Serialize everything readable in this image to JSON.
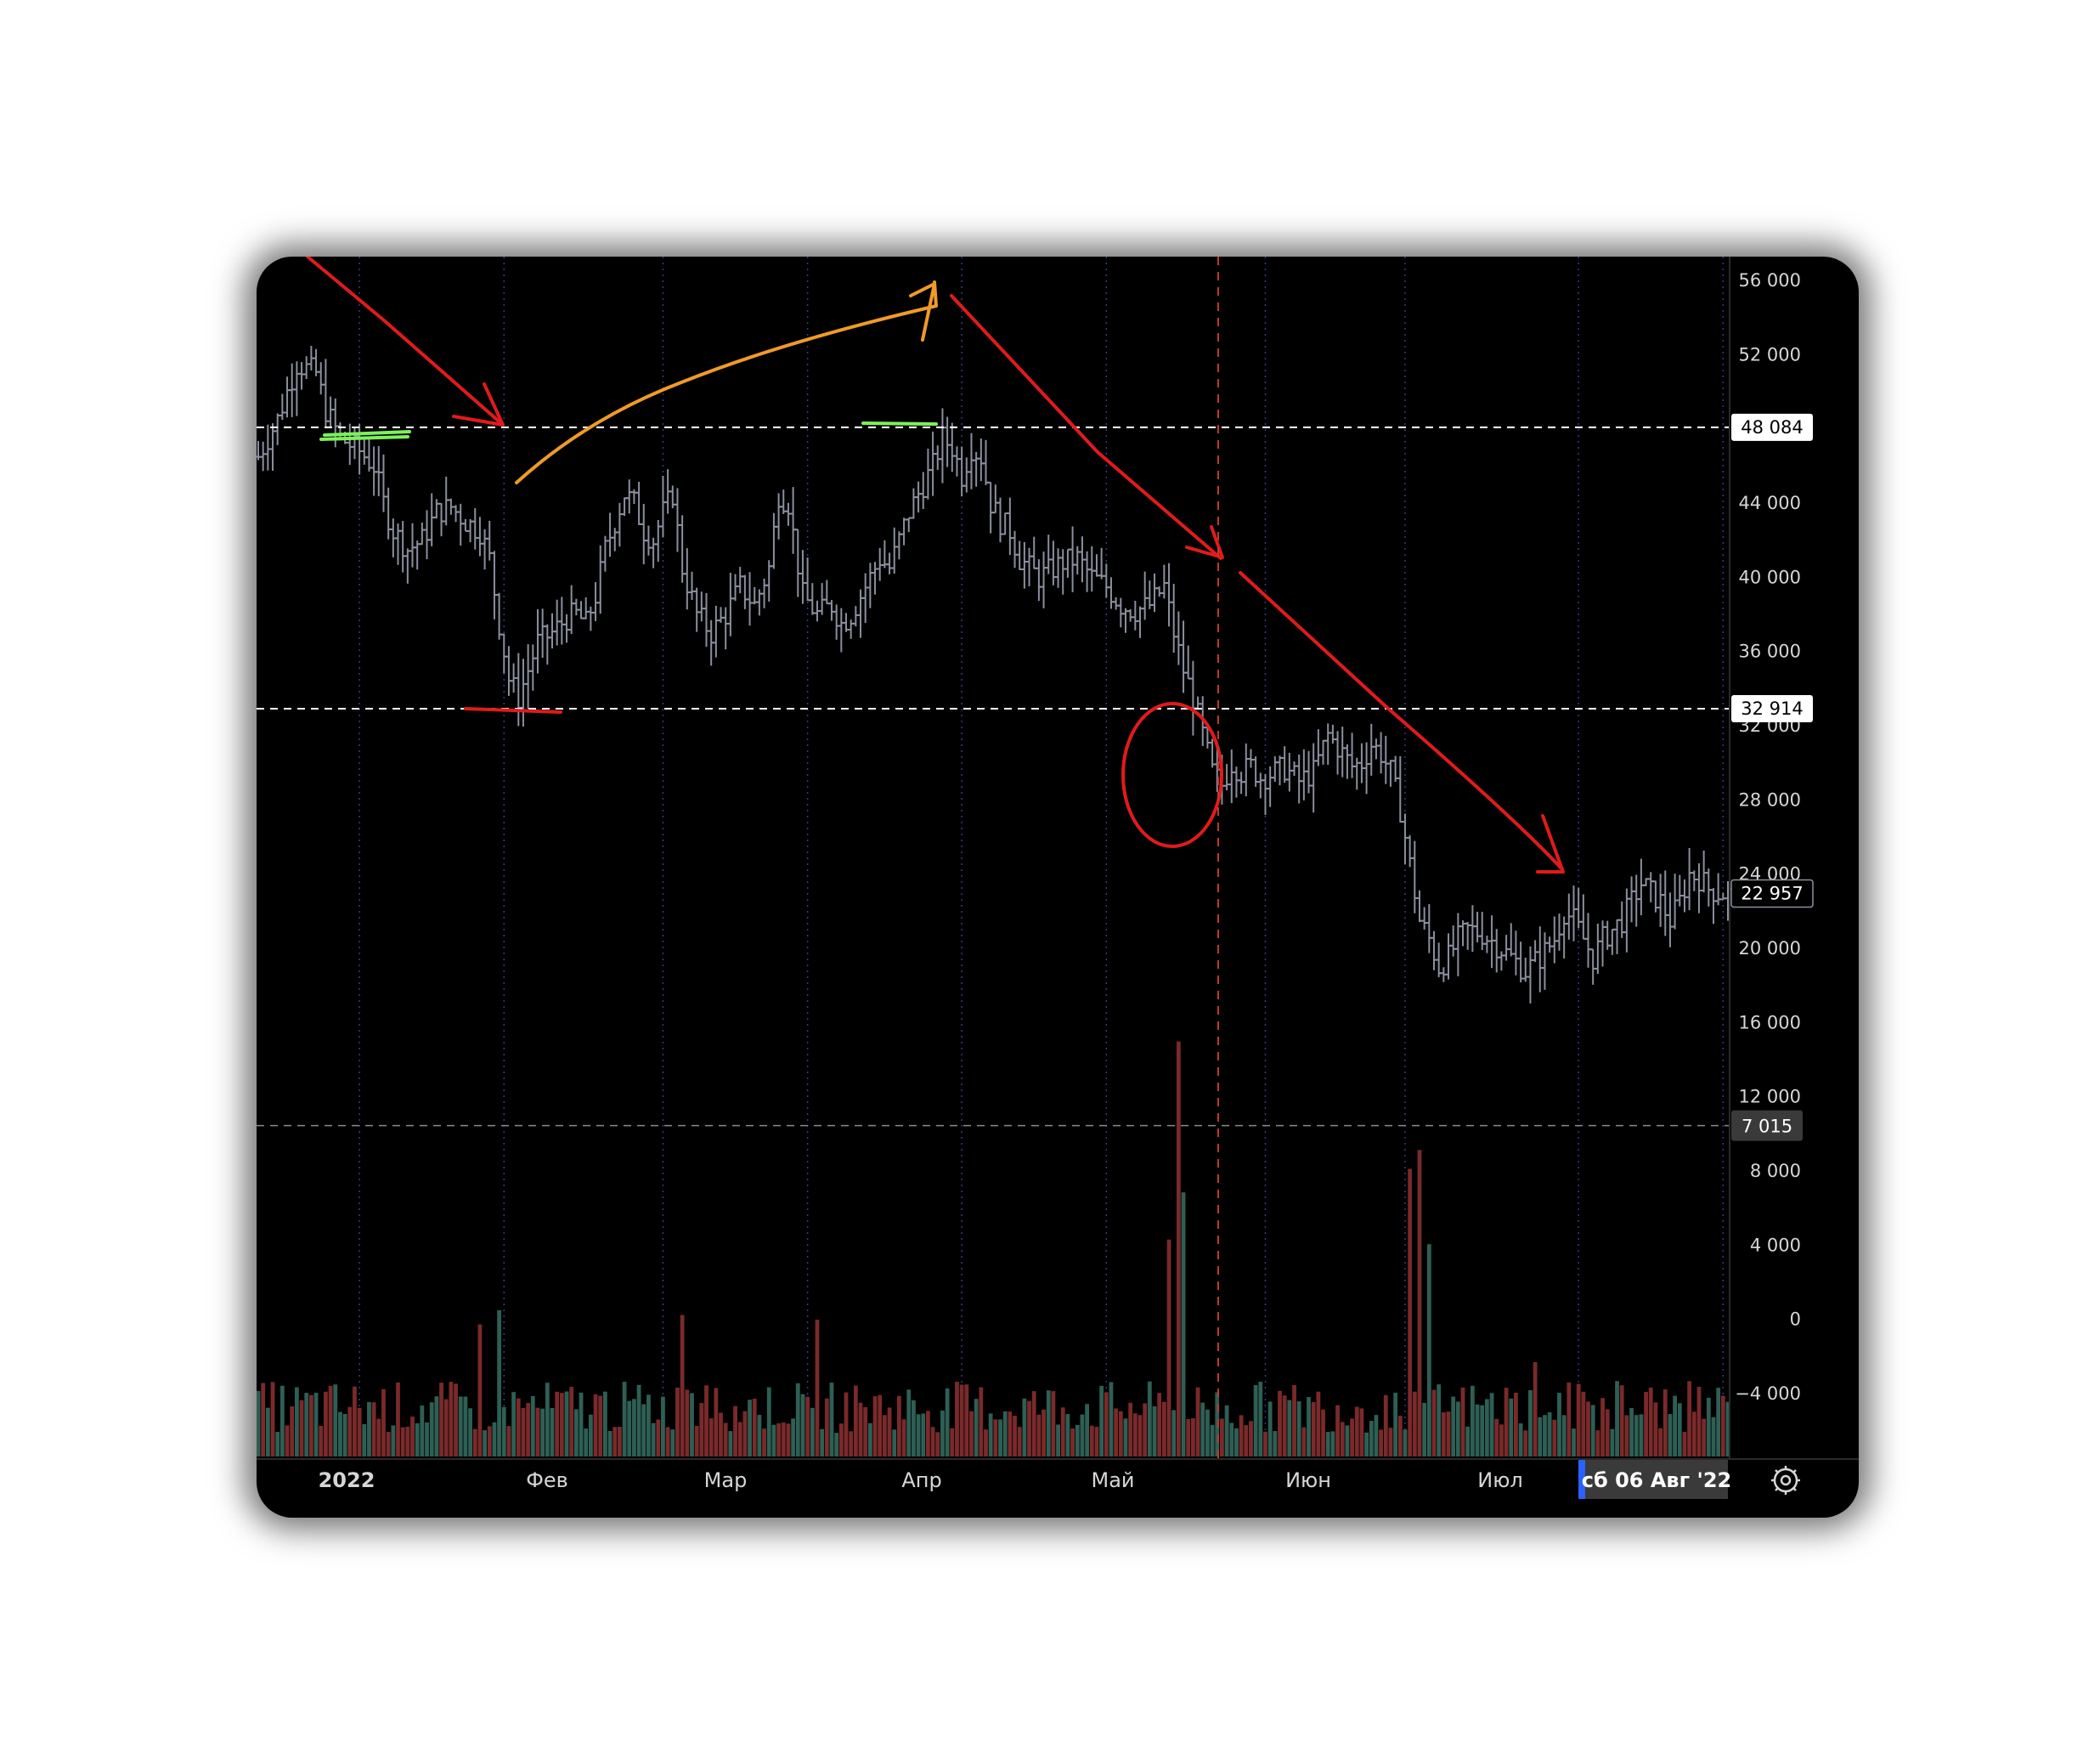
{
  "colors": {
    "background": "#000000",
    "candle": "#8a8f9e",
    "volume_up": "#2e5f55",
    "volume_down": "#7a2a2a",
    "level_line": "#ffffff",
    "annotation_red": "#e01b1b",
    "annotation_orange": "#f09a28",
    "annotation_green": "#7cf25a",
    "grid_month": "#2f3d8f",
    "crosshair": "#c0392b"
  },
  "chart_data": {
    "type": "ohlc-bar",
    "y_ticks": [
      "56 000",
      "52 000",
      "44 000",
      "40 000",
      "36 000",
      "32 000",
      "28 000",
      "24 000",
      "20 000",
      "16 000",
      "12 000",
      "8 000",
      "4 000",
      "0",
      "−4 000"
    ],
    "y_tick_values": [
      56000,
      52000,
      44000,
      40000,
      36000,
      32000,
      28000,
      24000,
      20000,
      16000,
      12000,
      8000,
      4000,
      0,
      -4000
    ],
    "ylim": [
      -6000,
      57500
    ],
    "x_labels": [
      "2022",
      "Фев",
      "Мар",
      "Апр",
      "Май",
      "Июн",
      "Июл"
    ],
    "level_lines": [
      {
        "value": 48084,
        "label": "48 084"
      },
      {
        "value": 32914,
        "label": "32 914"
      }
    ],
    "last_price": {
      "value": 22957,
      "label": "22 957"
    },
    "volume_marker": {
      "value": 7015,
      "label": "7 015"
    },
    "crosshair_date": "сб 06 Авг '22",
    "price_path": [
      [
        0,
        46500
      ],
      [
        4,
        48500
      ],
      [
        8,
        51500
      ],
      [
        12,
        51000
      ],
      [
        14,
        49000
      ],
      [
        17,
        47500
      ],
      [
        21,
        46800
      ],
      [
        24,
        46000
      ],
      [
        26,
        44000
      ],
      [
        28,
        42500
      ],
      [
        31,
        41500
      ],
      [
        34,
        42000
      ],
      [
        37,
        43500
      ],
      [
        40,
        43800
      ],
      [
        43,
        43000
      ],
      [
        46,
        42500
      ],
      [
        48,
        41000
      ],
      [
        50,
        37500
      ],
      [
        52,
        34500
      ],
      [
        54,
        33500
      ],
      [
        56,
        35000
      ],
      [
        58,
        36500
      ],
      [
        61,
        37000
      ],
      [
        64,
        37800
      ],
      [
        66,
        38000
      ],
      [
        68,
        37500
      ],
      [
        70,
        39000
      ],
      [
        72,
        41500
      ],
      [
        74,
        43000
      ],
      [
        76,
        44500
      ],
      [
        78,
        44000
      ],
      [
        80,
        42500
      ],
      [
        82,
        42000
      ],
      [
        84,
        43500
      ],
      [
        86,
        44500
      ],
      [
        88,
        40500
      ],
      [
        91,
        38000
      ],
      [
        94,
        37000
      ],
      [
        97,
        38000
      ],
      [
        100,
        39500
      ],
      [
        103,
        38500
      ],
      [
        106,
        40500
      ],
      [
        108,
        44500
      ],
      [
        110,
        44000
      ],
      [
        113,
        39000
      ],
      [
        116,
        38000
      ],
      [
        119,
        38500
      ],
      [
        121,
        37500
      ],
      [
        123,
        38000
      ],
      [
        125,
        39000
      ],
      [
        127,
        40000
      ],
      [
        129,
        41000
      ],
      [
        131,
        40500
      ],
      [
        133,
        42000
      ],
      [
        135,
        43500
      ],
      [
        137,
        44500
      ],
      [
        140,
        46000
      ],
      [
        142,
        47500
      ],
      [
        144,
        47000
      ],
      [
        146,
        45500
      ],
      [
        148,
        47000
      ],
      [
        150,
        46500
      ],
      [
        152,
        44000
      ],
      [
        154,
        43000
      ],
      [
        156,
        42500
      ],
      [
        158,
        41000
      ],
      [
        160,
        40500
      ],
      [
        162,
        40000
      ],
      [
        164,
        40300
      ],
      [
        167,
        40800
      ],
      [
        170,
        41000
      ],
      [
        173,
        40000
      ],
      [
        176,
        39500
      ],
      [
        179,
        38500
      ],
      [
        182,
        38200
      ],
      [
        185,
        38500
      ],
      [
        188,
        39500
      ],
      [
        190,
        37000
      ],
      [
        192,
        35000
      ],
      [
        194,
        33500
      ],
      [
        196,
        31500
      ],
      [
        198,
        29500
      ],
      [
        200,
        28800
      ],
      [
        202,
        30000
      ],
      [
        204,
        29500
      ],
      [
        206,
        29800
      ],
      [
        208,
        29200
      ],
      [
        210,
        29400
      ],
      [
        213,
        29700
      ],
      [
        216,
        29000
      ],
      [
        219,
        29500
      ],
      [
        222,
        31500
      ],
      [
        225,
        30500
      ],
      [
        227,
        29800
      ],
      [
        229,
        30000
      ],
      [
        231,
        31000
      ],
      [
        233,
        30500
      ],
      [
        235,
        29500
      ],
      [
        237,
        27500
      ],
      [
        239,
        24500
      ],
      [
        241,
        21500
      ],
      [
        243,
        20500
      ],
      [
        245,
        19000
      ],
      [
        247,
        19500
      ],
      [
        249,
        20500
      ],
      [
        251,
        21000
      ],
      [
        254,
        20800
      ],
      [
        257,
        20200
      ],
      [
        260,
        19500
      ],
      [
        263,
        18800
      ],
      [
        266,
        19500
      ],
      [
        269,
        20500
      ],
      [
        271,
        22000
      ],
      [
        273,
        21500
      ],
      [
        275,
        20500
      ],
      [
        277,
        19500
      ],
      [
        279,
        20500
      ],
      [
        281,
        21000
      ],
      [
        283,
        21500
      ],
      [
        285,
        22500
      ],
      [
        287,
        23500
      ],
      [
        289,
        23000
      ],
      [
        291,
        22500
      ],
      [
        293,
        21500
      ],
      [
        295,
        22500
      ],
      [
        297,
        24000
      ],
      [
        299,
        23800
      ],
      [
        301,
        23200
      ],
      [
        303,
        23000
      ],
      [
        305,
        22957
      ]
    ],
    "volume_spikes": [
      {
        "t": 46,
        "v": 2800
      },
      {
        "t": 50,
        "v": 3100
      },
      {
        "t": 88,
        "v": 3000
      },
      {
        "t": 116,
        "v": 2900
      },
      {
        "t": 189,
        "v": 4600
      },
      {
        "t": 191,
        "v": 8800
      },
      {
        "t": 192,
        "v": 5600
      },
      {
        "t": 239,
        "v": 6100
      },
      {
        "t": 241,
        "v": 6500
      },
      {
        "t": 243,
        "v": 4500
      },
      {
        "t": 265,
        "v": 2000
      },
      {
        "t": 282,
        "v": 1600
      }
    ]
  }
}
